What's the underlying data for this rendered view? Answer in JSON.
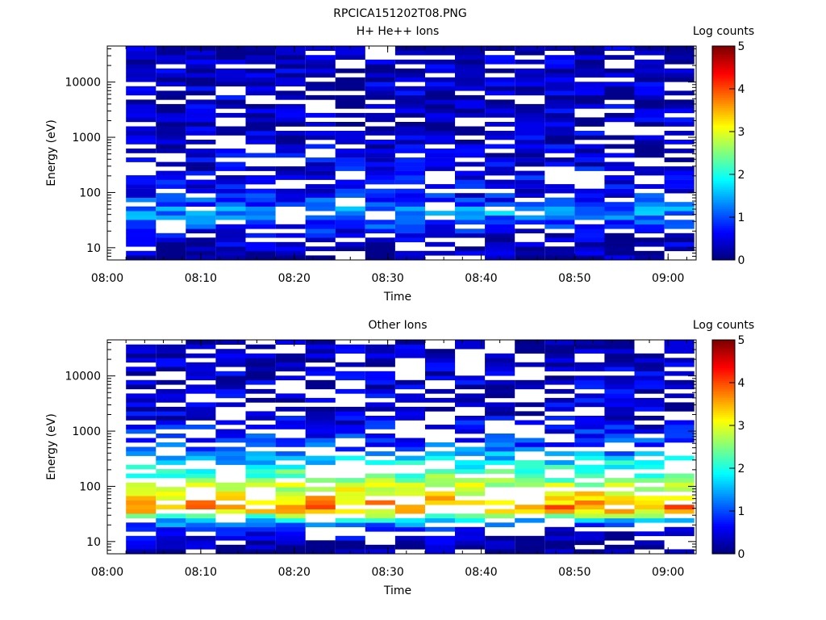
{
  "figure": {
    "title": "RPCICA151202T08.PNG"
  },
  "colors": {
    "axis": "#000000",
    "missing": "#ffffff"
  },
  "chart_data": [
    {
      "type": "heatmap",
      "title": "H+ He++ Ions",
      "xlabel": "Time",
      "ylabel": "Energy (eV)",
      "x_ticks": [
        "08:00",
        "08:10",
        "08:20",
        "08:30",
        "08:40",
        "08:50",
        "09:00"
      ],
      "y_ticks": [
        "10",
        "100",
        "1000",
        "10000"
      ],
      "y_scale": "log",
      "xlim": [
        "08:00",
        "09:03"
      ],
      "ylim": [
        6,
        45000
      ],
      "time_bins_start": "08:02",
      "time_bin_minutes": 3.2,
      "n_time_bins": 19,
      "energy_bins_log": [
        0.78,
        4.65
      ],
      "n_energy_bins": 48,
      "colorbar": {
        "label": "Log counts",
        "range": [
          0,
          5
        ],
        "ticks": [
          "0",
          "1",
          "2",
          "3",
          "4",
          "5"
        ],
        "colormap": "jet"
      },
      "profile": [
        {
          "energy_eV": 10,
          "log_counts": 0.2
        },
        {
          "energy_eV": 15,
          "log_counts": 0.4
        },
        {
          "energy_eV": 22,
          "log_counts": 0.7
        },
        {
          "energy_eV": 30,
          "log_counts": 1.0
        },
        {
          "energy_eV": 45,
          "log_counts": 1.4
        },
        {
          "energy_eV": 60,
          "log_counts": 1.0
        },
        {
          "energy_eV": 100,
          "log_counts": 0.6
        },
        {
          "energy_eV": 1000,
          "log_counts": 0.35
        },
        {
          "energy_eV": 40000,
          "log_counts": 0.3
        }
      ],
      "missing_fraction": 0.25
    },
    {
      "type": "heatmap",
      "title": "Other Ions",
      "xlabel": "Time",
      "ylabel": "Energy (eV)",
      "x_ticks": [
        "08:00",
        "08:10",
        "08:20",
        "08:30",
        "08:40",
        "08:50",
        "09:00"
      ],
      "y_ticks": [
        "10",
        "100",
        "1000",
        "10000"
      ],
      "y_scale": "log",
      "xlim": [
        "08:00",
        "09:03"
      ],
      "ylim": [
        6,
        45000
      ],
      "time_bins_start": "08:02",
      "time_bin_minutes": 3.2,
      "n_time_bins": 19,
      "energy_bins_log": [
        0.78,
        4.65
      ],
      "n_energy_bins": 48,
      "colorbar": {
        "label": "Log counts",
        "range": [
          0,
          5
        ],
        "ticks": [
          "0",
          "1",
          "2",
          "3",
          "4",
          "5"
        ],
        "colormap": "jet"
      },
      "profile": [
        {
          "energy_eV": 8,
          "log_counts": 0.1
        },
        {
          "energy_eV": 15,
          "log_counts": 0.5
        },
        {
          "energy_eV": 22,
          "log_counts": 1.3
        },
        {
          "energy_eV": 30,
          "log_counts": 2.5
        },
        {
          "energy_eV": 40,
          "log_counts": 3.8
        },
        {
          "energy_eV": 55,
          "log_counts": 3.4
        },
        {
          "energy_eV": 80,
          "log_counts": 3.0
        },
        {
          "energy_eV": 150,
          "log_counts": 2.4
        },
        {
          "energy_eV": 300,
          "log_counts": 1.6
        },
        {
          "energy_eV": 600,
          "log_counts": 0.9
        },
        {
          "energy_eV": 1500,
          "log_counts": 0.5
        },
        {
          "energy_eV": 40000,
          "log_counts": 0.2
        }
      ],
      "missing_fraction": 0.35
    }
  ]
}
